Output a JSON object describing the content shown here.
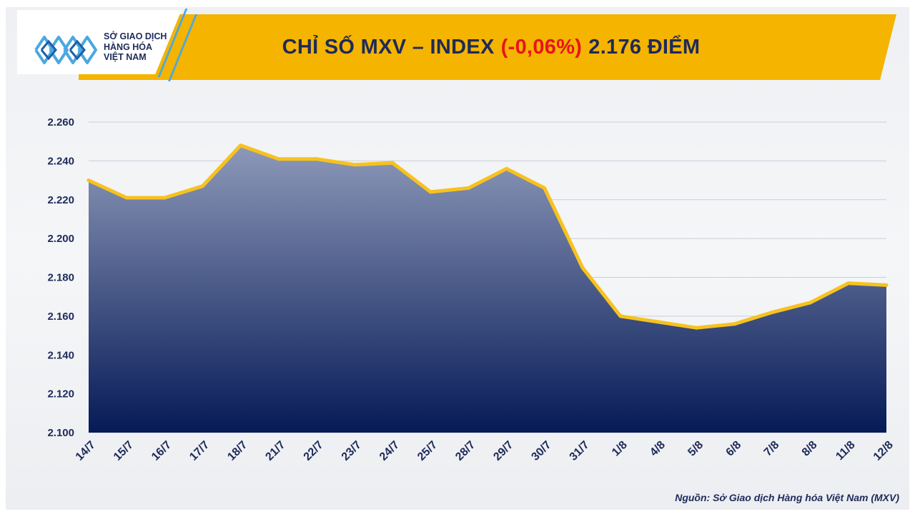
{
  "header": {
    "logo_line1": "SỞ GIAO DỊCH",
    "logo_line2": "HÀNG HÓA",
    "logo_line3": "VIỆT NAM",
    "title_prefix": "CHỈ SỐ MXV – INDEX",
    "title_change": "(-0,06%)",
    "title_value": "2.176 ĐIỂM"
  },
  "footer": {
    "source": "Nguồn: Sở Giao dịch Hàng hóa Việt Nam (MXV)"
  },
  "colors": {
    "banner": "#f4b400",
    "title_text": "#1e2a5a",
    "negative": "#e8141c",
    "line": "#f7c21e",
    "area_top": "#8d99b9",
    "area_bottom": "#061a57",
    "logo_accent": "#4aa8e0"
  },
  "chart_data": {
    "type": "area",
    "title": "CHỈ SỐ MXV – INDEX (-0,06%) 2.176 ĐIỂM",
    "xlabel": "",
    "ylabel": "",
    "categories": [
      "14/7",
      "15/7",
      "16/7",
      "17/7",
      "18/7",
      "21/7",
      "22/7",
      "23/7",
      "24/7",
      "25/7",
      "28/7",
      "29/7",
      "30/7",
      "31/7",
      "1/8",
      "4/8",
      "5/8",
      "6/8",
      "7/8",
      "8/8",
      "11/8",
      "12/8"
    ],
    "values": [
      2230,
      2221,
      2221,
      2227,
      2248,
      2241,
      2241,
      2238,
      2239,
      2224,
      2226,
      2236,
      2226,
      2185,
      2160,
      2157,
      2154,
      2156,
      2162,
      2167,
      2177,
      2176
    ],
    "ylim": [
      2100,
      2260
    ],
    "yticks": [
      2100,
      2120,
      2140,
      2160,
      2180,
      2200,
      2220,
      2240,
      2260
    ],
    "ytick_labels": [
      "2.100",
      "2.120",
      "2.140",
      "2.160",
      "2.180",
      "2.200",
      "2.220",
      "2.240",
      "2.260"
    ],
    "grid": true,
    "legend": "none"
  }
}
